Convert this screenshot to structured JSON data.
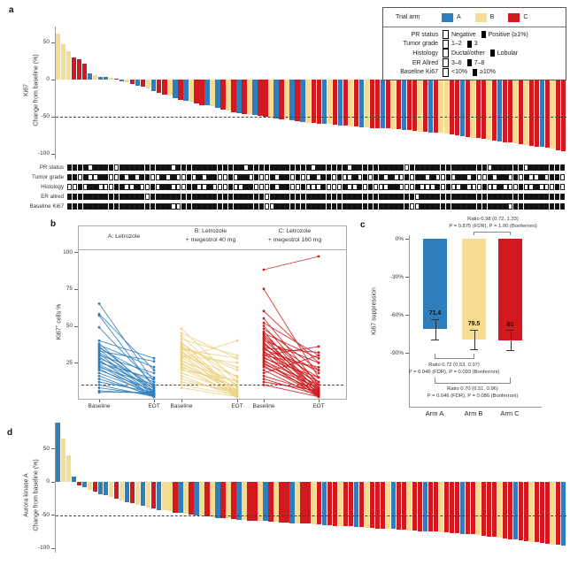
{
  "panel_a": {
    "label": "a",
    "ylabel_line1": "Ki67",
    "ylabel_line2": "Change from baseline (%)",
    "yticks": [
      "50",
      "0",
      "-50",
      "-100"
    ],
    "tracks": [
      {
        "label": "PR status",
        "cells": "111101111011111111110111111111111101111111111110111111011111111110111111111111111011111101111111"
      },
      {
        "label": "Tumor grade",
        "cells": "110100110010101100101001010110010110100101101001011010010101101001011010010110100101101010010110"
      },
      {
        "label": "Histology",
        "cells": "001011000110010010110001100100010011000101100100010001001010001100010001010010001001000100100010"
      },
      {
        "label": "ER allred",
        "cells": "111111111111111011111111111111111111110111111111111111111111111111101111111111111111111111111111"
      },
      {
        "label": "Baseline Ki67",
        "cells": "111111111111111111110011111111111111110011111111111111111111111111001111111111111111101111111111"
      }
    ]
  },
  "legend": {
    "trial_arm_label": "Trial arm",
    "arms": [
      {
        "label": "A",
        "color": "#2E7EBD"
      },
      {
        "label": "B",
        "color": "#F6DB92"
      },
      {
        "label": "C",
        "color": "#D2191F"
      }
    ],
    "rows": [
      {
        "label": "PR status",
        "items": [
          {
            "filled": false,
            "text": "Negative"
          },
          {
            "filled": true,
            "text": "Positive (≥1%)"
          }
        ]
      },
      {
        "label": "Tumor grade",
        "items": [
          {
            "filled": false,
            "text": "1–2"
          },
          {
            "filled": true,
            "text": "3"
          }
        ]
      },
      {
        "label": "Histology",
        "items": [
          {
            "filled": false,
            "text": "Ductal/other"
          },
          {
            "filled": true,
            "text": "Lobular"
          }
        ]
      },
      {
        "label": "ER Allred",
        "items": [
          {
            "filled": false,
            "text": "3–6"
          },
          {
            "filled": true,
            "text": "7–8"
          }
        ]
      },
      {
        "label": "Baseline Ki67",
        "items": [
          {
            "filled": false,
            "text": "<10%"
          },
          {
            "filled": true,
            "text": "≥10%"
          }
        ]
      }
    ]
  },
  "panel_b": {
    "label": "b",
    "ylabel_pre": "Ki67",
    "ylabel_sup": "+",
    "ylabel_post": " cells %",
    "yticks": [
      "100",
      "75",
      "50",
      "25"
    ],
    "x_labels": [
      "Baseline",
      "EOT",
      "Baseline",
      "EOT",
      "Baseline",
      "EOT"
    ]
  },
  "panel_c": {
    "label": "c"
  },
  "panel_d": {
    "label": "d",
    "ylabel_line1": "Aurora kinase A",
    "ylabel_line2": "Change from baseline (%)",
    "yticks": [
      "50",
      "0",
      "-50",
      "-100"
    ]
  },
  "chart_data": [
    {
      "id": "a",
      "type": "bar",
      "title": "Ki67 change from baseline waterfall",
      "ylabel": "Ki67 — Change from baseline (%)",
      "ylim": [
        -100,
        62
      ],
      "dashed_line": -50,
      "grid": false,
      "arm_colors": {
        "A": "#2E7EBD",
        "B": "#F6DB92",
        "C": "#D2191F"
      },
      "arms": [
        "B",
        "B",
        "B",
        "C",
        "C",
        "C",
        "A",
        "B",
        "A",
        "A",
        "B",
        "C",
        "A",
        "B",
        "C",
        "A",
        "C",
        "B",
        "A",
        "C",
        "C",
        "B",
        "A",
        "C",
        "A",
        "B",
        "C",
        "C",
        "A",
        "B",
        "A",
        "C",
        "B",
        "C",
        "A",
        "C",
        "B",
        "A",
        "C",
        "C",
        "B",
        "A",
        "C",
        "B",
        "A",
        "C",
        "A",
        "B",
        "C",
        "C",
        "A",
        "B",
        "C",
        "A",
        "C",
        "B",
        "C",
        "A",
        "B",
        "C",
        "C",
        "A",
        "C",
        "B",
        "C",
        "A",
        "C",
        "C",
        "B",
        "C",
        "A",
        "C",
        "B",
        "B",
        "C",
        "C",
        "A",
        "C",
        "B",
        "C",
        "C",
        "B",
        "C",
        "A",
        "C",
        "C",
        "B",
        "C",
        "B",
        "C",
        "C",
        "A",
        "C",
        "B",
        "C",
        "C"
      ],
      "values": [
        62,
        48,
        38,
        30,
        27,
        22,
        8,
        6,
        4,
        3,
        2,
        1,
        -2,
        -4,
        -6,
        -8,
        -10,
        -12,
        -15,
        -18,
        -20,
        -22,
        -25,
        -27,
        -28,
        -30,
        -32,
        -34,
        -35,
        -36,
        -38,
        -40,
        -42,
        -44,
        -45,
        -46,
        -47,
        -48,
        -49,
        -50,
        -51,
        -52,
        -53,
        -54,
        -55,
        -56,
        -57,
        -58,
        -58,
        -59,
        -60,
        -60,
        -61,
        -62,
        -62,
        -63,
        -63,
        -64,
        -64,
        -65,
        -65,
        -66,
        -66,
        -67,
        -67,
        -68,
        -68,
        -69,
        -70,
        -70,
        -71,
        -72,
        -72,
        -73,
        -74,
        -75,
        -76,
        -77,
        -78,
        -79,
        -80,
        -81,
        -82,
        -83,
        -84,
        -85,
        -86,
        -87,
        -88,
        -89,
        -90,
        -91,
        -92,
        -93,
        -95,
        -97
      ]
    },
    {
      "id": "b",
      "type": "line",
      "title": "Paired Ki67+ cells % Baseline to EOT by arm",
      "ylabel": "Ki67+ cells %",
      "ylim": [
        0,
        100
      ],
      "yticks": [
        25,
        50,
        75,
        100
      ],
      "dashed_line": 10,
      "x_labels": [
        "Baseline",
        "EOT"
      ],
      "groups": [
        {
          "name": "A",
          "title_line1": "A: Letrozole",
          "title_line2": "",
          "color": "#2E7EBD",
          "pairs": [
            [
              65,
              12
            ],
            [
              58,
              20
            ],
            [
              57,
              8
            ],
            [
              49,
              10
            ],
            [
              40,
              28
            ],
            [
              38,
              5
            ],
            [
              37,
              22
            ],
            [
              36,
              7
            ],
            [
              35,
              15
            ],
            [
              34,
              4
            ],
            [
              33,
              26
            ],
            [
              32,
              9
            ],
            [
              31,
              3
            ],
            [
              30,
              18
            ],
            [
              29,
              6
            ],
            [
              28,
              12
            ],
            [
              27,
              2
            ],
            [
              26,
              8
            ],
            [
              25,
              14
            ],
            [
              24,
              5
            ],
            [
              23,
              3
            ],
            [
              22,
              10
            ],
            [
              21,
              2
            ],
            [
              20,
              6
            ],
            [
              18,
              4
            ],
            [
              16,
              2
            ],
            [
              14,
              3
            ],
            [
              12,
              5
            ],
            [
              10,
              2
            ],
            [
              8,
              3
            ],
            [
              6,
              4
            ],
            [
              5,
              5
            ]
          ]
        },
        {
          "name": "B",
          "title_line1": "B: Letrozole",
          "title_line2": "+ megestrol 40 mg",
          "color": "#EDD183",
          "pairs": [
            [
              48,
              12
            ],
            [
              45,
              28
            ],
            [
              43,
              8
            ],
            [
              41,
              30
            ],
            [
              39,
              5
            ],
            [
              38,
              15
            ],
            [
              37,
              3
            ],
            [
              36,
              20
            ],
            [
              35,
              6
            ],
            [
              34,
              28
            ],
            [
              33,
              4
            ],
            [
              32,
              10
            ],
            [
              31,
              2
            ],
            [
              30,
              16
            ],
            [
              29,
              5
            ],
            [
              28,
              40
            ],
            [
              27,
              3
            ],
            [
              26,
              12
            ],
            [
              25,
              4
            ],
            [
              24,
              7
            ],
            [
              23,
              2
            ],
            [
              22,
              9
            ],
            [
              21,
              3
            ],
            [
              20,
              13
            ],
            [
              18,
              5
            ],
            [
              16,
              2
            ],
            [
              14,
              4
            ],
            [
              12,
              6
            ],
            [
              10,
              3
            ],
            [
              8,
              2
            ],
            [
              35,
              22
            ],
            [
              30,
              25
            ]
          ]
        },
        {
          "name": "C",
          "title_line1": "C: Letrozole",
          "title_line2": "+ megestrol 160 mg",
          "color": "#CF1A1E",
          "pairs": [
            [
              88,
              97
            ],
            [
              75,
              15
            ],
            [
              60,
              25
            ],
            [
              55,
              10
            ],
            [
              52,
              30
            ],
            [
              50,
              8
            ],
            [
              48,
              20
            ],
            [
              46,
              5
            ],
            [
              45,
              28
            ],
            [
              44,
              12
            ],
            [
              43,
              3
            ],
            [
              42,
              18
            ],
            [
              41,
              6
            ],
            [
              40,
              25
            ],
            [
              39,
              4
            ],
            [
              38,
              10
            ],
            [
              37,
              15
            ],
            [
              36,
              2
            ],
            [
              35,
              8
            ],
            [
              34,
              20
            ],
            [
              33,
              5
            ],
            [
              32,
              12
            ],
            [
              31,
              3
            ],
            [
              30,
              36
            ],
            [
              29,
              7
            ],
            [
              28,
              15
            ],
            [
              27,
              2
            ],
            [
              26,
              10
            ],
            [
              25,
              4
            ],
            [
              24,
              8
            ],
            [
              23,
              3
            ],
            [
              22,
              6
            ],
            [
              20,
              2
            ],
            [
              18,
              30
            ],
            [
              16,
              5
            ],
            [
              14,
              3
            ],
            [
              12,
              6
            ],
            [
              10,
              2
            ],
            [
              35,
              32
            ],
            [
              30,
              22
            ]
          ]
        }
      ]
    },
    {
      "id": "c",
      "type": "bar",
      "title": "Ki67 suppression by arm",
      "ylabel": "Ki67 suppression",
      "categories": [
        "Arm A",
        "Arm B",
        "Arm C"
      ],
      "values": [
        71.4,
        79.5,
        80
      ],
      "value_labels": [
        "71.4",
        "79.5",
        "80"
      ],
      "error_pct": 8,
      "yticks": [
        "0%",
        "-30%",
        "-60%",
        "-90%"
      ],
      "annotations": [
        {
          "between": [
            "Arm B",
            "Arm C"
          ],
          "line1": "Ratio 0.98 (0.72, 1.33)",
          "line2": "P = 0.875 (FDR), P = 1.00 (Bonferroni)"
        },
        {
          "between": [
            "Arm A",
            "Arm B"
          ],
          "line1": "Ratio 0.72 (0.53, 0.97)",
          "line2": "P = 0.046 (FDR), P = 0.093 (Bonferroni)"
        },
        {
          "between": [
            "Arm A",
            "Arm C"
          ],
          "line1": "Ratio 0.70 (0.51, 0.96)",
          "line2": "P = 0.046 (FDR), P = 0.086 (Bonferroni)"
        }
      ]
    },
    {
      "id": "d",
      "type": "bar",
      "title": "Aurora kinase A change from baseline waterfall",
      "ylabel": "Aurora kinase A — Change from baseline (%)",
      "ylim": [
        -100,
        90
      ],
      "dashed_line": -50,
      "grid": false,
      "arms": [
        "A",
        "B",
        "B",
        "A",
        "C",
        "A",
        "B",
        "C",
        "A",
        "A",
        "B",
        "C",
        "B",
        "A",
        "C",
        "B",
        "A",
        "B",
        "C",
        "A",
        "B",
        "B",
        "C",
        "A",
        "B",
        "C",
        "A",
        "B",
        "C",
        "B",
        "A",
        "C",
        "B",
        "C",
        "A",
        "B",
        "C",
        "C",
        "B",
        "A",
        "C",
        "B",
        "C",
        "C",
        "A",
        "B",
        "C",
        "C",
        "B",
        "C",
        "A",
        "C",
        "C",
        "B",
        "C",
        "C",
        "A",
        "C",
        "B",
        "C",
        "C",
        "C",
        "B",
        "A",
        "C",
        "C",
        "B",
        "C",
        "C",
        "A",
        "C",
        "C",
        "B",
        "C",
        "C",
        "C",
        "A",
        "C",
        "C",
        "B",
        "C",
        "C",
        "C",
        "B",
        "C",
        "C",
        "A",
        "C",
        "C",
        "B",
        "C",
        "C",
        "C",
        "B",
        "C",
        "A"
      ],
      "values": [
        90,
        65,
        40,
        8,
        -5,
        -8,
        -12,
        -15,
        -18,
        -20,
        -22,
        -25,
        -28,
        -30,
        -32,
        -34,
        -36,
        -38,
        -40,
        -42,
        -43,
        -44,
        -46,
        -47,
        -48,
        -49,
        -50,
        -51,
        -52,
        -53,
        -54,
        -55,
        -55,
        -56,
        -57,
        -57,
        -58,
        -58,
        -59,
        -59,
        -60,
        -60,
        -61,
        -61,
        -62,
        -62,
        -63,
        -63,
        -64,
        -64,
        -65,
        -65,
        -66,
        -66,
        -67,
        -67,
        -68,
        -68,
        -69,
        -69,
        -70,
        -70,
        -71,
        -71,
        -72,
        -72,
        -73,
        -73,
        -74,
        -74,
        -75,
        -75,
        -76,
        -76,
        -77,
        -77,
        -78,
        -78,
        -79,
        -80,
        -81,
        -82,
        -83,
        -84,
        -85,
        -86,
        -87,
        -88,
        -89,
        -90,
        -91,
        -92,
        -93,
        -94,
        -95,
        -96
      ]
    }
  ]
}
